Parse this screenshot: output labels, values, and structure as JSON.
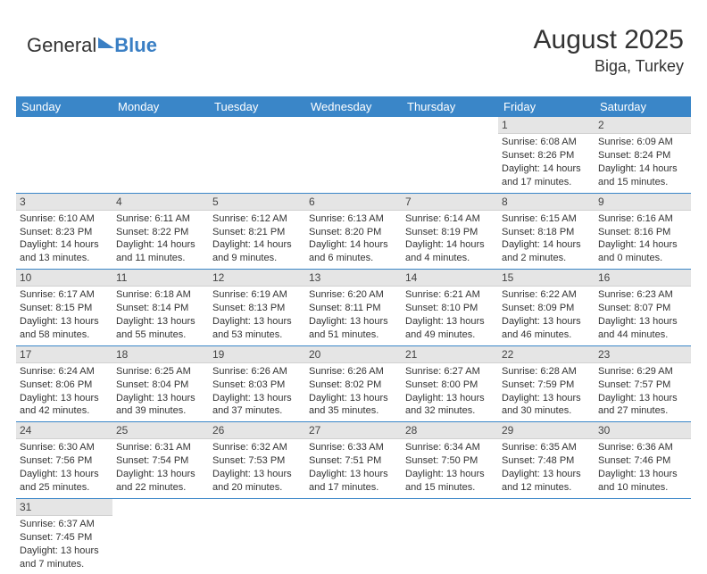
{
  "logo": {
    "part1": "General",
    "part2": "Blue"
  },
  "header": {
    "month": "August 2025",
    "location": "Biga, Turkey"
  },
  "colors": {
    "header_bg": "#3a86c8",
    "header_text": "#ffffff",
    "daynum_bg": "#e5e5e5",
    "row_border": "#3a86c8",
    "text": "#333333"
  },
  "typography": {
    "month_fontsize": 30,
    "location_fontsize": 18,
    "dayheader_fontsize": 13,
    "cell_fontsize": 11
  },
  "day_headers": [
    "Sunday",
    "Monday",
    "Tuesday",
    "Wednesday",
    "Thursday",
    "Friday",
    "Saturday"
  ],
  "weeks": [
    [
      null,
      null,
      null,
      null,
      null,
      {
        "n": "1",
        "sunrise": "Sunrise: 6:08 AM",
        "sunset": "Sunset: 8:26 PM",
        "daylight": "Daylight: 14 hours and 17 minutes."
      },
      {
        "n": "2",
        "sunrise": "Sunrise: 6:09 AM",
        "sunset": "Sunset: 8:24 PM",
        "daylight": "Daylight: 14 hours and 15 minutes."
      }
    ],
    [
      {
        "n": "3",
        "sunrise": "Sunrise: 6:10 AM",
        "sunset": "Sunset: 8:23 PM",
        "daylight": "Daylight: 14 hours and 13 minutes."
      },
      {
        "n": "4",
        "sunrise": "Sunrise: 6:11 AM",
        "sunset": "Sunset: 8:22 PM",
        "daylight": "Daylight: 14 hours and 11 minutes."
      },
      {
        "n": "5",
        "sunrise": "Sunrise: 6:12 AM",
        "sunset": "Sunset: 8:21 PM",
        "daylight": "Daylight: 14 hours and 9 minutes."
      },
      {
        "n": "6",
        "sunrise": "Sunrise: 6:13 AM",
        "sunset": "Sunset: 8:20 PM",
        "daylight": "Daylight: 14 hours and 6 minutes."
      },
      {
        "n": "7",
        "sunrise": "Sunrise: 6:14 AM",
        "sunset": "Sunset: 8:19 PM",
        "daylight": "Daylight: 14 hours and 4 minutes."
      },
      {
        "n": "8",
        "sunrise": "Sunrise: 6:15 AM",
        "sunset": "Sunset: 8:18 PM",
        "daylight": "Daylight: 14 hours and 2 minutes."
      },
      {
        "n": "9",
        "sunrise": "Sunrise: 6:16 AM",
        "sunset": "Sunset: 8:16 PM",
        "daylight": "Daylight: 14 hours and 0 minutes."
      }
    ],
    [
      {
        "n": "10",
        "sunrise": "Sunrise: 6:17 AM",
        "sunset": "Sunset: 8:15 PM",
        "daylight": "Daylight: 13 hours and 58 minutes."
      },
      {
        "n": "11",
        "sunrise": "Sunrise: 6:18 AM",
        "sunset": "Sunset: 8:14 PM",
        "daylight": "Daylight: 13 hours and 55 minutes."
      },
      {
        "n": "12",
        "sunrise": "Sunrise: 6:19 AM",
        "sunset": "Sunset: 8:13 PM",
        "daylight": "Daylight: 13 hours and 53 minutes."
      },
      {
        "n": "13",
        "sunrise": "Sunrise: 6:20 AM",
        "sunset": "Sunset: 8:11 PM",
        "daylight": "Daylight: 13 hours and 51 minutes."
      },
      {
        "n": "14",
        "sunrise": "Sunrise: 6:21 AM",
        "sunset": "Sunset: 8:10 PM",
        "daylight": "Daylight: 13 hours and 49 minutes."
      },
      {
        "n": "15",
        "sunrise": "Sunrise: 6:22 AM",
        "sunset": "Sunset: 8:09 PM",
        "daylight": "Daylight: 13 hours and 46 minutes."
      },
      {
        "n": "16",
        "sunrise": "Sunrise: 6:23 AM",
        "sunset": "Sunset: 8:07 PM",
        "daylight": "Daylight: 13 hours and 44 minutes."
      }
    ],
    [
      {
        "n": "17",
        "sunrise": "Sunrise: 6:24 AM",
        "sunset": "Sunset: 8:06 PM",
        "daylight": "Daylight: 13 hours and 42 minutes."
      },
      {
        "n": "18",
        "sunrise": "Sunrise: 6:25 AM",
        "sunset": "Sunset: 8:04 PM",
        "daylight": "Daylight: 13 hours and 39 minutes."
      },
      {
        "n": "19",
        "sunrise": "Sunrise: 6:26 AM",
        "sunset": "Sunset: 8:03 PM",
        "daylight": "Daylight: 13 hours and 37 minutes."
      },
      {
        "n": "20",
        "sunrise": "Sunrise: 6:26 AM",
        "sunset": "Sunset: 8:02 PM",
        "daylight": "Daylight: 13 hours and 35 minutes."
      },
      {
        "n": "21",
        "sunrise": "Sunrise: 6:27 AM",
        "sunset": "Sunset: 8:00 PM",
        "daylight": "Daylight: 13 hours and 32 minutes."
      },
      {
        "n": "22",
        "sunrise": "Sunrise: 6:28 AM",
        "sunset": "Sunset: 7:59 PM",
        "daylight": "Daylight: 13 hours and 30 minutes."
      },
      {
        "n": "23",
        "sunrise": "Sunrise: 6:29 AM",
        "sunset": "Sunset: 7:57 PM",
        "daylight": "Daylight: 13 hours and 27 minutes."
      }
    ],
    [
      {
        "n": "24",
        "sunrise": "Sunrise: 6:30 AM",
        "sunset": "Sunset: 7:56 PM",
        "daylight": "Daylight: 13 hours and 25 minutes."
      },
      {
        "n": "25",
        "sunrise": "Sunrise: 6:31 AM",
        "sunset": "Sunset: 7:54 PM",
        "daylight": "Daylight: 13 hours and 22 minutes."
      },
      {
        "n": "26",
        "sunrise": "Sunrise: 6:32 AM",
        "sunset": "Sunset: 7:53 PM",
        "daylight": "Daylight: 13 hours and 20 minutes."
      },
      {
        "n": "27",
        "sunrise": "Sunrise: 6:33 AM",
        "sunset": "Sunset: 7:51 PM",
        "daylight": "Daylight: 13 hours and 17 minutes."
      },
      {
        "n": "28",
        "sunrise": "Sunrise: 6:34 AM",
        "sunset": "Sunset: 7:50 PM",
        "daylight": "Daylight: 13 hours and 15 minutes."
      },
      {
        "n": "29",
        "sunrise": "Sunrise: 6:35 AM",
        "sunset": "Sunset: 7:48 PM",
        "daylight": "Daylight: 13 hours and 12 minutes."
      },
      {
        "n": "30",
        "sunrise": "Sunrise: 6:36 AM",
        "sunset": "Sunset: 7:46 PM",
        "daylight": "Daylight: 13 hours and 10 minutes."
      }
    ],
    [
      {
        "n": "31",
        "sunrise": "Sunrise: 6:37 AM",
        "sunset": "Sunset: 7:45 PM",
        "daylight": "Daylight: 13 hours and 7 minutes."
      },
      null,
      null,
      null,
      null,
      null,
      null
    ]
  ]
}
